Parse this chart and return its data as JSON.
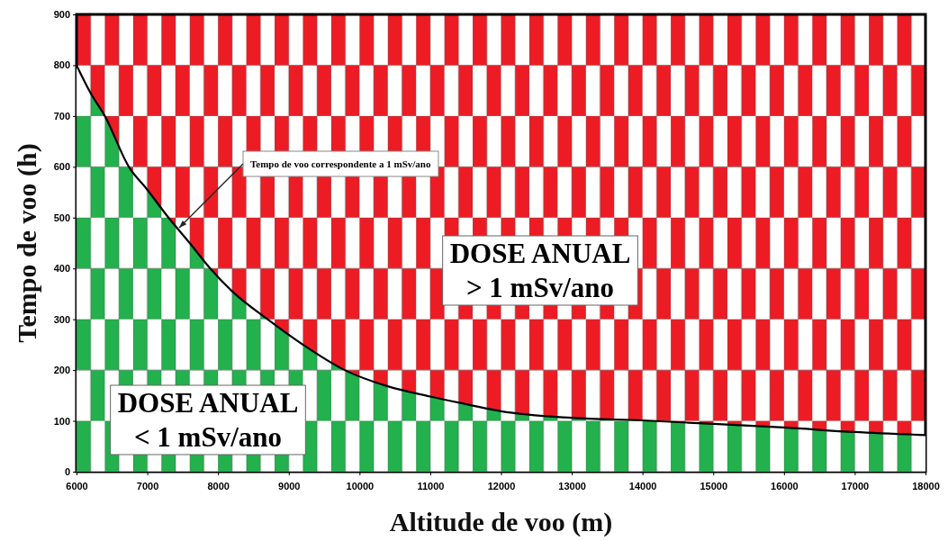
{
  "chart_data": {
    "type": "area",
    "xlabel": "Altitude de voo (m)",
    "ylabel": "Tempo de voo (h)",
    "x": [
      6000,
      6200,
      6400,
      6740,
      7000,
      7300,
      7600,
      7890,
      8200,
      8700,
      9200,
      9790,
      10400,
      11000,
      11570,
      12000,
      13000,
      14000,
      15000,
      16000,
      17000,
      18000
    ],
    "series": [
      {
        "color": "#22b14c",
        "values": [
          800,
          745,
          700,
          600,
          555,
          500,
          450,
          400,
          355,
          300,
          250,
          200,
          168,
          148,
          131,
          119,
          106,
          101,
          94,
          87,
          78,
          72
        ]
      }
    ],
    "xlim": [
      6000,
      18000
    ],
    "xticks": [
      6000,
      7000,
      8000,
      9000,
      10000,
      11000,
      12000,
      13000,
      14000,
      15000,
      16000,
      17000,
      18000
    ],
    "ylim": [
      0,
      900
    ],
    "yticks": [
      0,
      100,
      200,
      300,
      400,
      500,
      600,
      700,
      800,
      900
    ],
    "line_style": "solid",
    "grid": false,
    "annotations": [
      {
        "text": "Tempo de voo correspondente a 1 mSv/ano",
        "x": 7400,
        "y": 480
      },
      "DOSE ANUAL\n< 1 mSv/ano",
      "DOSE ANUAL\n> 1 mSv/ano"
    ]
  }
}
